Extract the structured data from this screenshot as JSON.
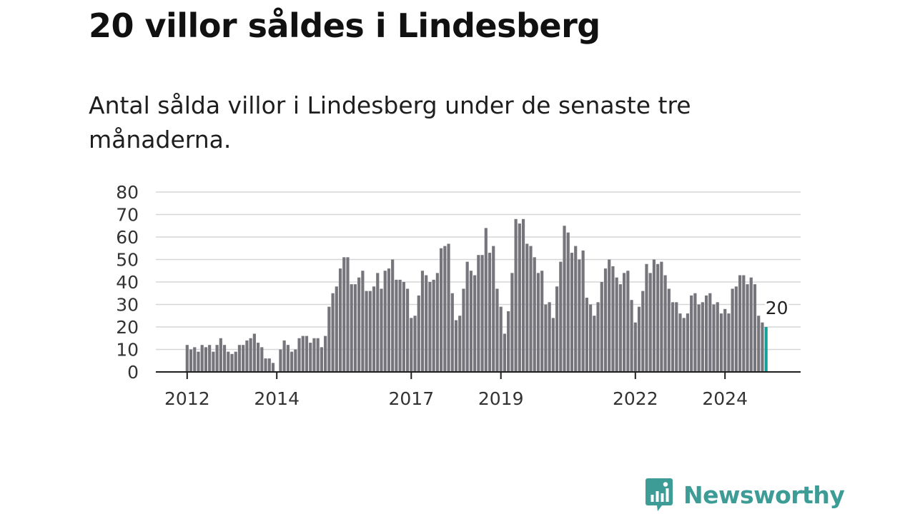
{
  "header": {
    "title": "20 villor såldes i Lindesberg",
    "subtitle": "Antal sålda villor i Lindesberg under de senaste tre månaderna."
  },
  "brand": {
    "name": "Newsworthy",
    "icon": "newsworthy-logo-icon",
    "color": "#3e9c97"
  },
  "colors": {
    "bar": "#76757b",
    "highlight": "#13a09a",
    "grid": "#d6d6d6"
  },
  "chart_data": {
    "type": "bar",
    "title": "20 villor såldes i Lindesberg",
    "subtitle": "Antal sålda villor i Lindesberg under de senaste tre månaderna.",
    "xlabel": "",
    "ylabel": "",
    "ylim": [
      0,
      80
    ],
    "y_ticks": [
      0,
      10,
      20,
      30,
      40,
      50,
      60,
      70,
      80
    ],
    "x_tick_labels": [
      "2012",
      "2014",
      "2017",
      "2019",
      "2022",
      "2024"
    ],
    "grid": true,
    "start_month": "2012-01",
    "end_month": "2025-01",
    "highlight_last": true,
    "end_label": "20",
    "values": [
      12,
      10,
      11,
      9,
      12,
      11,
      12,
      9,
      12,
      15,
      12,
      9,
      8,
      9,
      12,
      12,
      14,
      15,
      17,
      13,
      11,
      6,
      6,
      4,
      0,
      10,
      14,
      12,
      9,
      10,
      15,
      16,
      16,
      13,
      15,
      15,
      11,
      16,
      29,
      35,
      38,
      46,
      51,
      51,
      39,
      39,
      42,
      45,
      36,
      36,
      38,
      44,
      37,
      45,
      46,
      50,
      41,
      41,
      40,
      37,
      24,
      25,
      34,
      45,
      43,
      40,
      41,
      44,
      55,
      56,
      57,
      35,
      23,
      25,
      37,
      49,
      45,
      43,
      52,
      52,
      64,
      53,
      56,
      37,
      29,
      17,
      27,
      44,
      68,
      66,
      68,
      57,
      56,
      51,
      44,
      45,
      30,
      31,
      24,
      38,
      49,
      65,
      62,
      53,
      56,
      50,
      54,
      33,
      30,
      25,
      31,
      40,
      46,
      50,
      47,
      42,
      39,
      44,
      45,
      32,
      22,
      29,
      36,
      48,
      44,
      50,
      48,
      49,
      43,
      37,
      31,
      31,
      26,
      24,
      26,
      34,
      35,
      30,
      31,
      34,
      35,
      30,
      31,
      26,
      28,
      26,
      37,
      38,
      43,
      43,
      39,
      42,
      39,
      25,
      22,
      20
    ]
  }
}
